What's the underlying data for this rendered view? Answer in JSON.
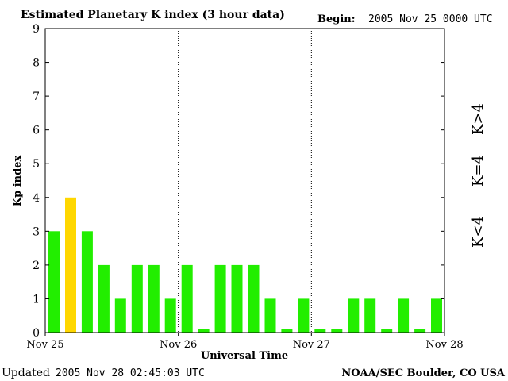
{
  "header": {
    "title": "Estimated Planetary K index (3 hour data)",
    "begin_label": "Begin:",
    "begin_value": "2005 Nov 25 0000 UTC"
  },
  "footer": {
    "updated_label": "Updated",
    "updated_value": "2005 Nov 28 02:45:03 UTC",
    "source": "NOAA/SEC Boulder, CO USA"
  },
  "legend": {
    "high": "K>4",
    "equal": "K=4",
    "low": "K<4"
  },
  "colors": {
    "low": "#22ee00",
    "equal": "#ffd700",
    "high": "#ee2200"
  },
  "chart_data": {
    "type": "bar",
    "title": "Estimated Planetary K index (3 hour data)",
    "xlabel": "Universal Time",
    "ylabel": "Kp index",
    "ylim": [
      0,
      9
    ],
    "yticks": [
      "0",
      "1",
      "2",
      "3",
      "4",
      "5",
      "6",
      "7",
      "8",
      "9"
    ],
    "xticks": [
      "Nov 25",
      "Nov 26",
      "Nov 27",
      "Nov 28"
    ],
    "interval_hours": 3,
    "values": [
      3,
      4,
      3,
      2,
      1,
      2,
      2,
      1,
      2,
      0,
      2,
      2,
      2,
      1,
      0,
      1,
      0,
      0,
      1,
      1,
      0,
      1,
      0,
      1
    ]
  }
}
